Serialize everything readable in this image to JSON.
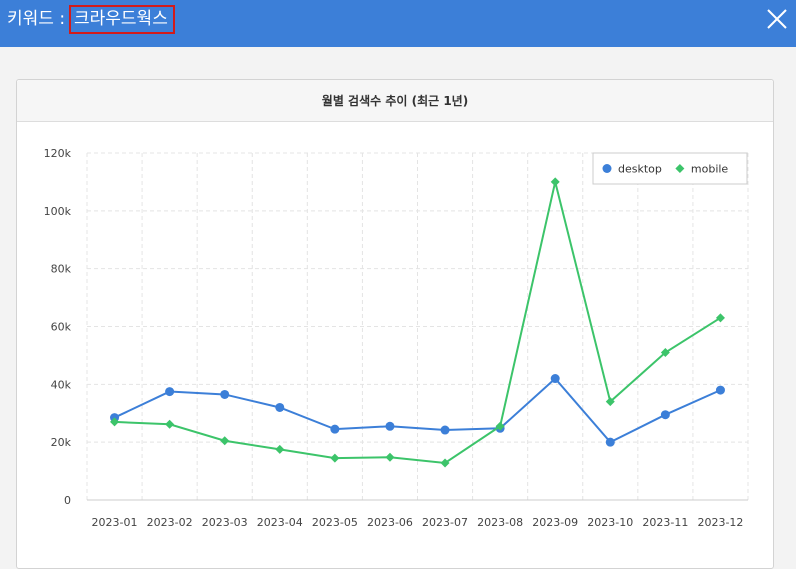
{
  "header": {
    "keyword_prefix": "키워드 :",
    "keyword_value": "크라우드웍스",
    "bar_color": "#3c7fd8",
    "close_icon": "close-icon"
  },
  "card": {
    "title": "월별 검색수 추이 (최근 1년)"
  },
  "chart_data": {
    "type": "line",
    "title": "월별 검색수 추이 (최근 1년)",
    "categories": [
      "2023-01",
      "2023-02",
      "2023-03",
      "2023-04",
      "2023-05",
      "2023-06",
      "2023-07",
      "2023-08",
      "2023-09",
      "2023-10",
      "2023-11",
      "2023-12"
    ],
    "series": [
      {
        "name": "desktop",
        "color": "#3c7fd8",
        "marker": "circle",
        "values": [
          28500,
          37500,
          36500,
          32000,
          24500,
          25500,
          24200,
          24800,
          42000,
          20000,
          29500,
          38000
        ]
      },
      {
        "name": "mobile",
        "color": "#3cc46a",
        "marker": "diamond",
        "values": [
          27000,
          26200,
          20500,
          17500,
          14500,
          14800,
          12800,
          25500,
          110000,
          34000,
          51000,
          63000
        ]
      }
    ],
    "ylim": [
      0,
      120000
    ],
    "yticks": [
      0,
      20000,
      40000,
      60000,
      80000,
      100000,
      120000
    ],
    "ytick_labels": [
      "0",
      "20k",
      "40k",
      "60k",
      "80k",
      "100k",
      "120k"
    ],
    "grid": true,
    "legend_position": "top-right"
  }
}
